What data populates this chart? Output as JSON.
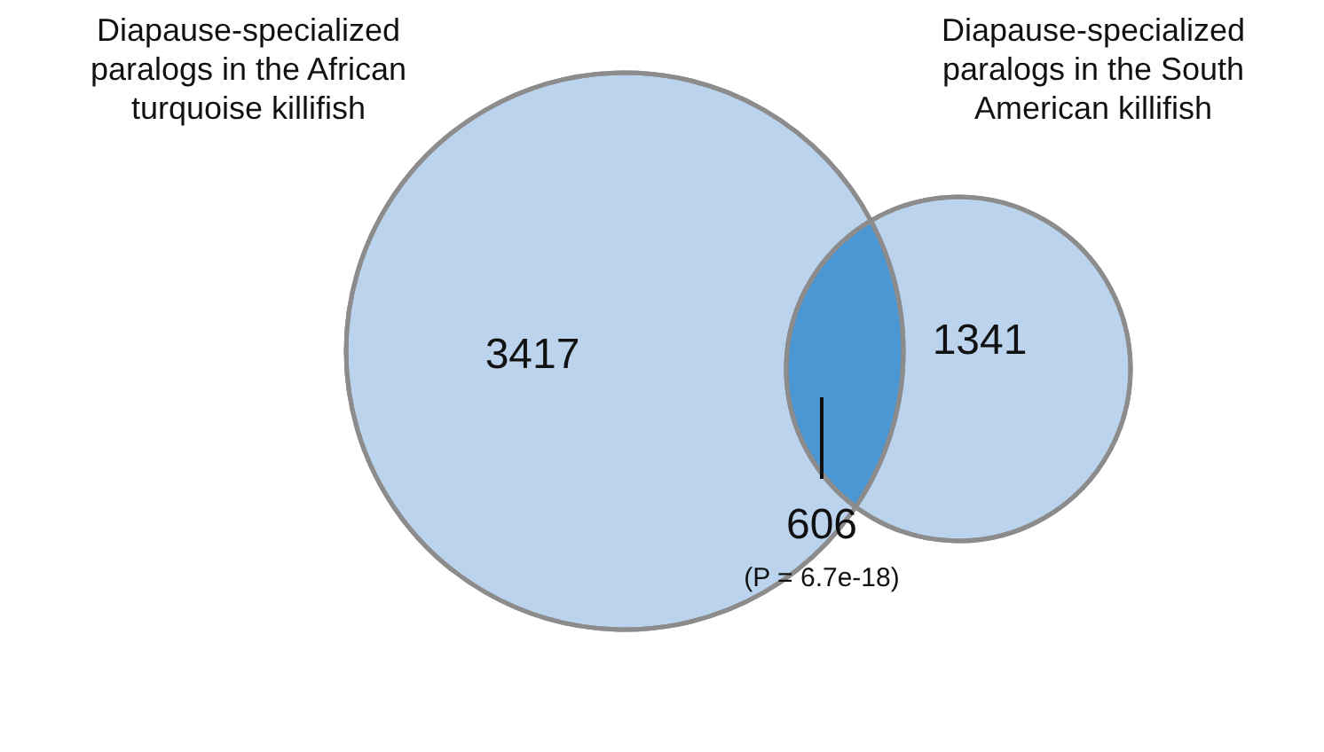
{
  "chart_data": {
    "type": "other",
    "categories": [
      "Diapause-specialized paralogs in the African turquoise killifish",
      "Diapause-specialized paralogs in the South American killifish",
      null
    ],
    "values": [
      3417,
      1341,
      606
    ],
    "colors": [
      "#bcd3ee",
      "#bcd3ee",
      "#4a97d3"
    ],
    "data_labels": true,
    "annotations": [
      "(P = 6.7e-18)"
    ]
  }
}
